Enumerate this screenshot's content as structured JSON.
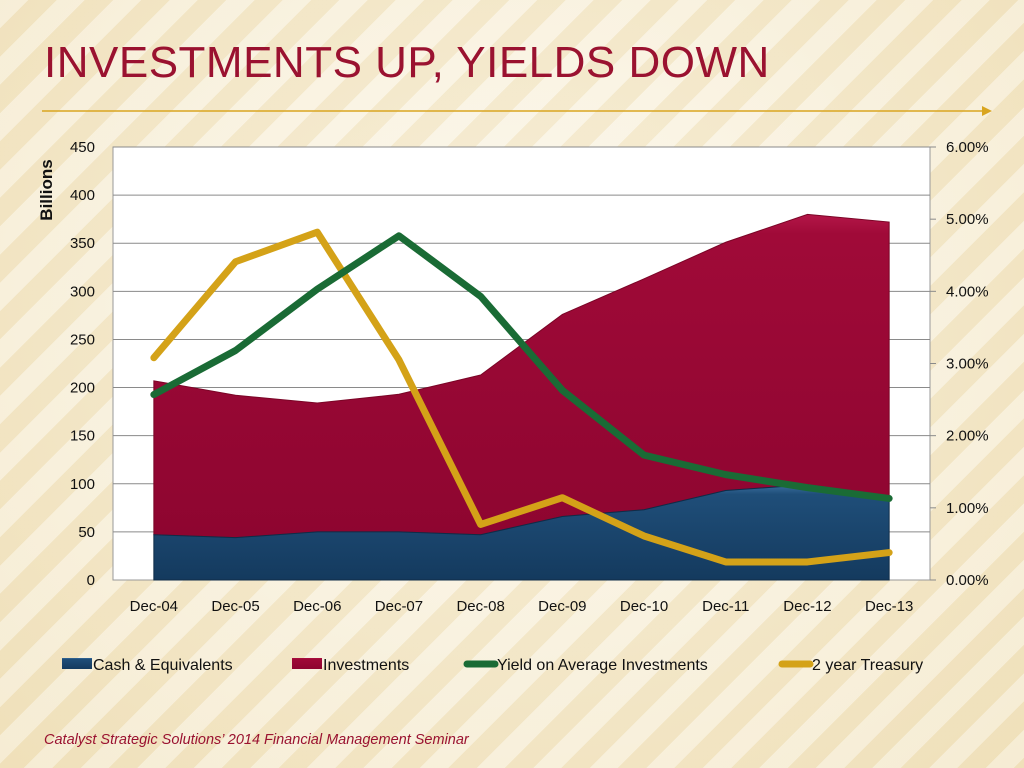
{
  "slide": {
    "title": "INVESTMENTS UP, YIELDS DOWN",
    "footer": "Catalyst Strategic Solutions’ 2014 Financial Management Seminar"
  },
  "colors": {
    "title": "#9a1230",
    "rule": "#d9a520",
    "cash": "#1f4e79",
    "investments": "#a00a38",
    "yield": "#1a6b35",
    "treasury": "#d4a218"
  },
  "chart_data": {
    "type": "area",
    "title": "",
    "ylabel": "Billions",
    "ylabel_right": "",
    "categories": [
      "Dec-04",
      "Dec-05",
      "Dec-06",
      "Dec-07",
      "Dec-08",
      "Dec-09",
      "Dec-10",
      "Dec-11",
      "Dec-12",
      "Dec-13"
    ],
    "ylim": [
      0,
      450
    ],
    "yticks": [
      0,
      50,
      100,
      150,
      200,
      250,
      300,
      350,
      400,
      450
    ],
    "ylim_right": [
      0.0,
      6.0
    ],
    "yticks_right": [
      "0.00%",
      "1.00%",
      "2.00%",
      "3.00%",
      "4.00%",
      "5.00%",
      "6.00%"
    ],
    "yticks_right_values": [
      0,
      1,
      2,
      3,
      4,
      5,
      6
    ],
    "grid": true,
    "legend_position": "bottom",
    "series": [
      {
        "name": "Cash & Equivalents",
        "type": "stacked-area",
        "axis": "left",
        "values": [
          47,
          44,
          50,
          50,
          47,
          66,
          73,
          93,
          99,
          87
        ]
      },
      {
        "name": "Investments",
        "type": "stacked-area",
        "axis": "left",
        "values": [
          160,
          148,
          134,
          143,
          166,
          210,
          240,
          258,
          281,
          285
        ]
      },
      {
        "name": "Yield on Average Investments",
        "type": "line",
        "axis": "right",
        "values": [
          2.57,
          3.18,
          4.03,
          4.77,
          3.93,
          2.63,
          1.73,
          1.46,
          1.28,
          1.13
        ]
      },
      {
        "name": "2 year Treasury",
        "type": "line",
        "axis": "right",
        "values": [
          3.08,
          4.41,
          4.82,
          3.05,
          0.77,
          1.14,
          0.61,
          0.25,
          0.25,
          0.38
        ]
      }
    ]
  }
}
